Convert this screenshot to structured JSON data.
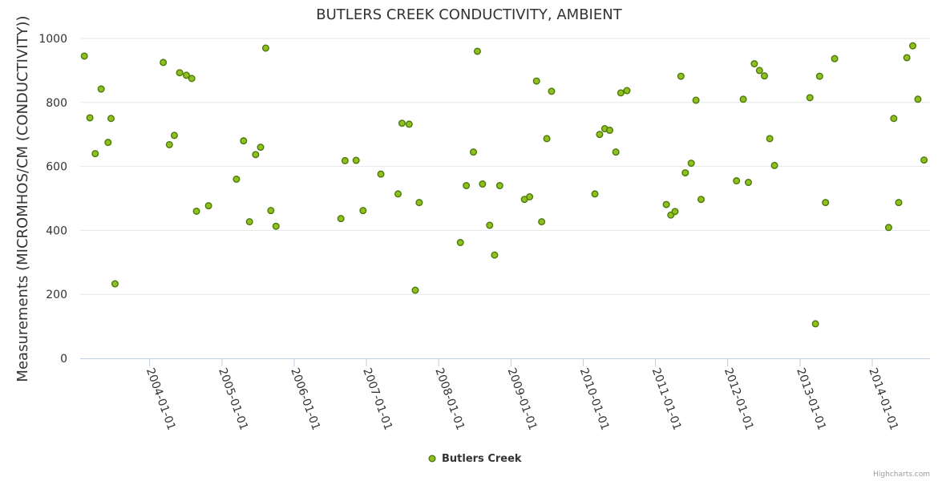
{
  "chart_data": {
    "type": "scatter",
    "title": "BUTLERS CREEK CONDUCTIVITY, AMBIENT",
    "ylabel": "Measurements (MICROMHOS/CM (CONDUCTIVITY))",
    "xlabel": "",
    "ylim": [
      0,
      1000
    ],
    "yticks": [
      "0",
      "200",
      "400",
      "600",
      "800",
      "1000"
    ],
    "xlim": [
      "2003-01-15",
      "2014-10-20"
    ],
    "xticks": [
      "2004-01-01",
      "2005-01-01",
      "2006-01-01",
      "2007-01-01",
      "2008-01-01",
      "2009-01-01",
      "2010-01-01",
      "2011-01-01",
      "2012-01-01",
      "2013-01-01",
      "2014-01-01"
    ],
    "grid": true,
    "legend_position": "bottom-center",
    "colors": {
      "marker_fill": "#90c020",
      "marker_stroke": "#4a7a08"
    },
    "series": [
      {
        "name": "Butlers Creek",
        "points": [
          [
            "2003-02-05",
            945
          ],
          [
            "2003-03-05",
            752
          ],
          [
            "2003-04-01",
            640
          ],
          [
            "2003-05-01",
            842
          ],
          [
            "2003-06-05",
            675
          ],
          [
            "2003-06-20",
            750
          ],
          [
            "2003-07-10",
            233
          ],
          [
            "2004-03-10",
            925
          ],
          [
            "2004-04-10",
            668
          ],
          [
            "2004-05-05",
            697
          ],
          [
            "2004-06-01",
            893
          ],
          [
            "2004-07-05",
            885
          ],
          [
            "2004-08-01",
            875
          ],
          [
            "2004-08-25",
            460
          ],
          [
            "2004-10-25",
            477
          ],
          [
            "2005-03-15",
            560
          ],
          [
            "2005-04-20",
            680
          ],
          [
            "2005-05-20",
            427
          ],
          [
            "2005-06-20",
            637
          ],
          [
            "2005-07-15",
            660
          ],
          [
            "2005-08-10",
            970
          ],
          [
            "2005-09-05",
            462
          ],
          [
            "2005-10-01",
            413
          ],
          [
            "2006-08-25",
            437
          ],
          [
            "2006-09-15",
            618
          ],
          [
            "2006-11-10",
            619
          ],
          [
            "2006-12-15",
            462
          ],
          [
            "2007-03-15",
            576
          ],
          [
            "2007-06-10",
            514
          ],
          [
            "2007-06-30",
            735
          ],
          [
            "2007-08-05",
            732
          ],
          [
            "2007-09-05",
            213
          ],
          [
            "2007-09-25",
            487
          ],
          [
            "2008-04-20",
            362
          ],
          [
            "2008-05-20",
            540
          ],
          [
            "2008-06-25",
            645
          ],
          [
            "2008-07-15",
            960
          ],
          [
            "2008-08-10",
            545
          ],
          [
            "2008-09-15",
            416
          ],
          [
            "2008-10-10",
            323
          ],
          [
            "2008-11-05",
            540
          ],
          [
            "2009-03-10",
            497
          ],
          [
            "2009-04-05",
            505
          ],
          [
            "2009-05-10",
            867
          ],
          [
            "2009-06-05",
            427
          ],
          [
            "2009-07-01",
            687
          ],
          [
            "2009-07-25",
            835
          ],
          [
            "2010-03-01",
            514
          ],
          [
            "2010-03-25",
            700
          ],
          [
            "2010-04-20",
            718
          ],
          [
            "2010-05-15",
            713
          ],
          [
            "2010-06-15",
            645
          ],
          [
            "2010-07-10",
            830
          ],
          [
            "2010-08-10",
            837
          ],
          [
            "2011-02-25",
            481
          ],
          [
            "2011-03-20",
            448
          ],
          [
            "2011-04-10",
            459
          ],
          [
            "2011-05-10",
            882
          ],
          [
            "2011-06-01",
            580
          ],
          [
            "2011-07-01",
            610
          ],
          [
            "2011-07-25",
            807
          ],
          [
            "2011-08-20",
            497
          ],
          [
            "2012-02-15",
            555
          ],
          [
            "2012-03-20",
            810
          ],
          [
            "2012-04-15",
            550
          ],
          [
            "2012-05-15",
            921
          ],
          [
            "2012-06-10",
            900
          ],
          [
            "2012-07-05",
            883
          ],
          [
            "2012-08-01",
            687
          ],
          [
            "2012-08-25",
            603
          ],
          [
            "2013-02-20",
            815
          ],
          [
            "2013-03-20",
            108
          ],
          [
            "2013-04-10",
            882
          ],
          [
            "2013-05-10",
            487
          ],
          [
            "2013-06-25",
            937
          ],
          [
            "2014-03-25",
            409
          ],
          [
            "2014-04-20",
            750
          ],
          [
            "2014-05-15",
            487
          ],
          [
            "2014-06-25",
            940
          ],
          [
            "2014-07-25",
            977
          ],
          [
            "2014-08-20",
            810
          ],
          [
            "2014-09-20",
            620
          ]
        ]
      }
    ]
  },
  "credits": "Highcharts.com"
}
